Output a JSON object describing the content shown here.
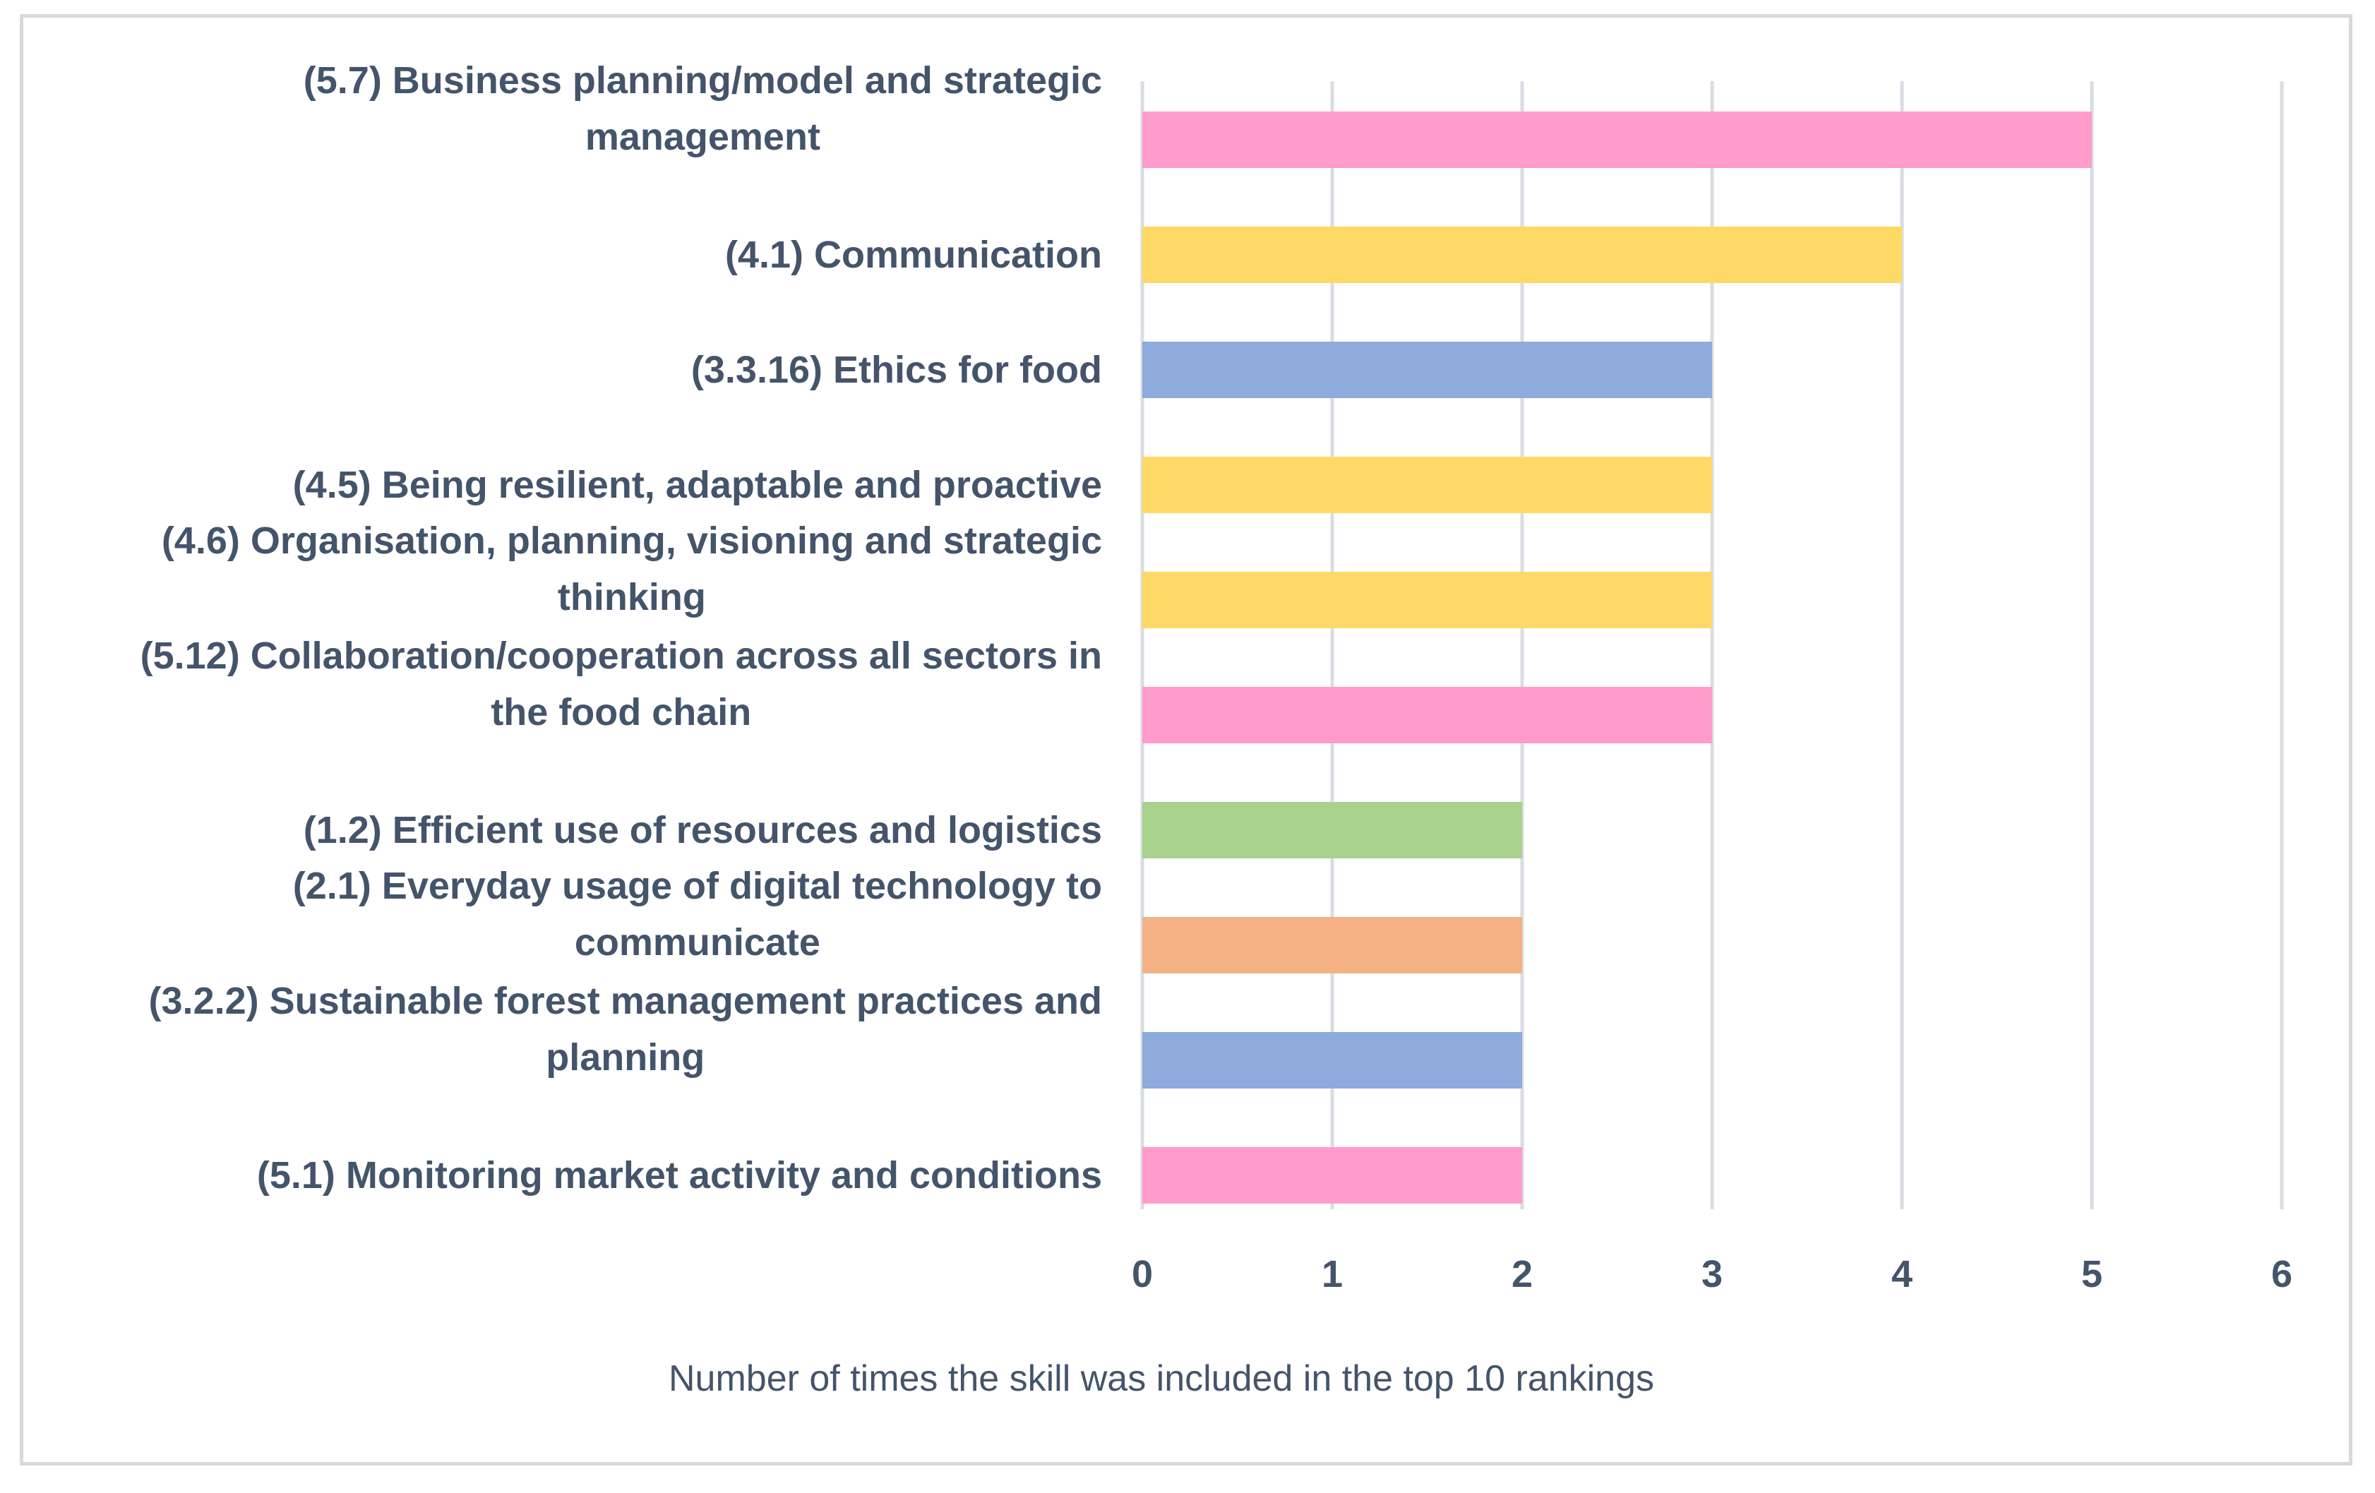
{
  "chart_data": {
    "type": "bar",
    "orientation": "horizontal",
    "title": "",
    "xlabel": "Number of  times the skill was included in the top 10 rankings",
    "ylabel": "",
    "xlim": [
      0,
      6
    ],
    "x_ticks": [
      "0",
      "1",
      "2",
      "3",
      "4",
      "5",
      "6"
    ],
    "grid": true,
    "legend": "none",
    "bars": [
      {
        "label_lines": [
          "(5.7) Business planning/model and strategic",
          "management"
        ],
        "value": 5,
        "color": "#ff9ccb"
      },
      {
        "label_lines": [
          "(4.1) Communication"
        ],
        "value": 4,
        "color": "#ffd966"
      },
      {
        "label_lines": [
          "(3.3.16) Ethics for food"
        ],
        "value": 3,
        "color": "#8faadc"
      },
      {
        "label_lines": [
          "(4.5) Being resilient, adaptable and proactive"
        ],
        "value": 3,
        "color": "#ffd966"
      },
      {
        "label_lines": [
          "(4.6) Organisation, planning, visioning and strategic",
          "thinking"
        ],
        "value": 3,
        "color": "#ffd966"
      },
      {
        "label_lines": [
          "(5.12) Collaboration/cooperation across all sectors in",
          "the food chain"
        ],
        "value": 3,
        "color": "#ff9ccb"
      },
      {
        "label_lines": [
          "(1.2) Efficient use of resources and logistics"
        ],
        "value": 2,
        "color": "#a9d18e"
      },
      {
        "label_lines": [
          "(2.1) Everyday usage of digital technology to",
          "communicate"
        ],
        "value": 2,
        "color": "#f4b183"
      },
      {
        "label_lines": [
          "(3.2.2) Sustainable forest management practices and",
          "planning"
        ],
        "value": 2,
        "color": "#8faadc"
      },
      {
        "label_lines": [
          "(5.1) Monitoring market activity and conditions"
        ],
        "value": 2,
        "color": "#ff9ccb"
      }
    ]
  }
}
